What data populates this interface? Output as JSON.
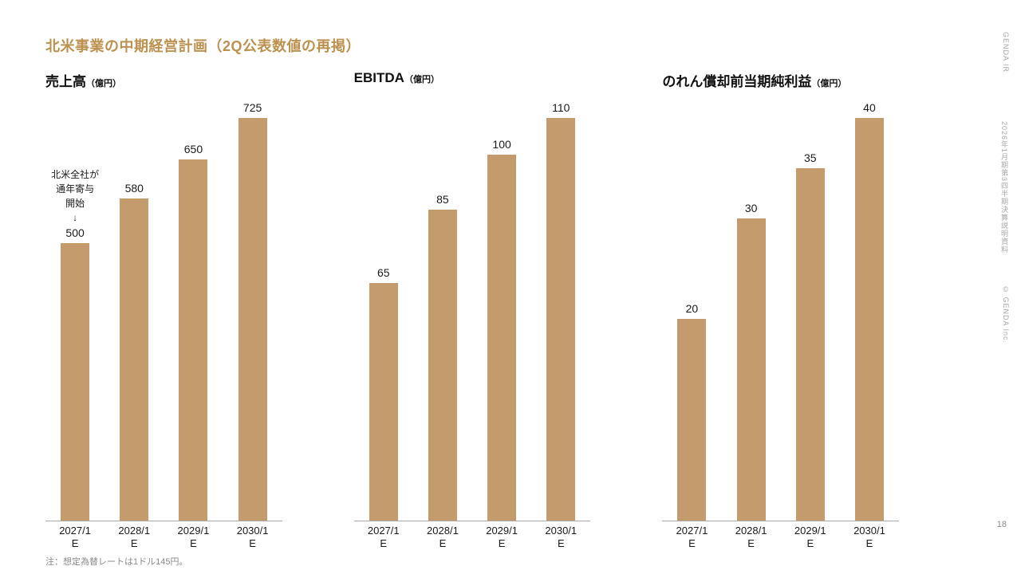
{
  "slide": {
    "title": "北米事業の中期経営計画（2Q公表数値の再掲）",
    "footnote": "注：想定為替レートは1ドル145円。",
    "page_number": "18",
    "sidebar": {
      "brand": "GENDA IR",
      "document": "2026年1月期第3四半期決算説明資料",
      "copyright": "© GENDA Inc."
    },
    "colors": {
      "accent": "#BC9150",
      "bar": "#C39B6C",
      "axis": "#A9A9A9"
    }
  },
  "chart_data": [
    {
      "type": "bar",
      "title": "売上高",
      "unit": "（億円）",
      "categories": [
        "2027/1",
        "2028/1",
        "2029/1",
        "2030/1"
      ],
      "category_suffix": "E",
      "values": [
        500,
        580,
        650,
        725
      ],
      "ymax": 725,
      "grid": false,
      "annotation": [
        "北米全社が",
        "通年寄与",
        "開始",
        "↓"
      ],
      "annotation_bar_index": 0
    },
    {
      "type": "bar",
      "title": "EBITDA",
      "unit": "（億円）",
      "categories": [
        "2027/1",
        "2028/1",
        "2029/1",
        "2030/1"
      ],
      "category_suffix": "E",
      "values": [
        65,
        85,
        100,
        110
      ],
      "ymax": 110,
      "grid": false
    },
    {
      "type": "bar",
      "title": "のれん償却前当期純利益",
      "unit": "（億円）",
      "categories": [
        "2027/1",
        "2028/1",
        "2029/1",
        "2030/1"
      ],
      "category_suffix": "E",
      "values": [
        20,
        30,
        35,
        40
      ],
      "ymax": 40,
      "grid": false
    }
  ]
}
